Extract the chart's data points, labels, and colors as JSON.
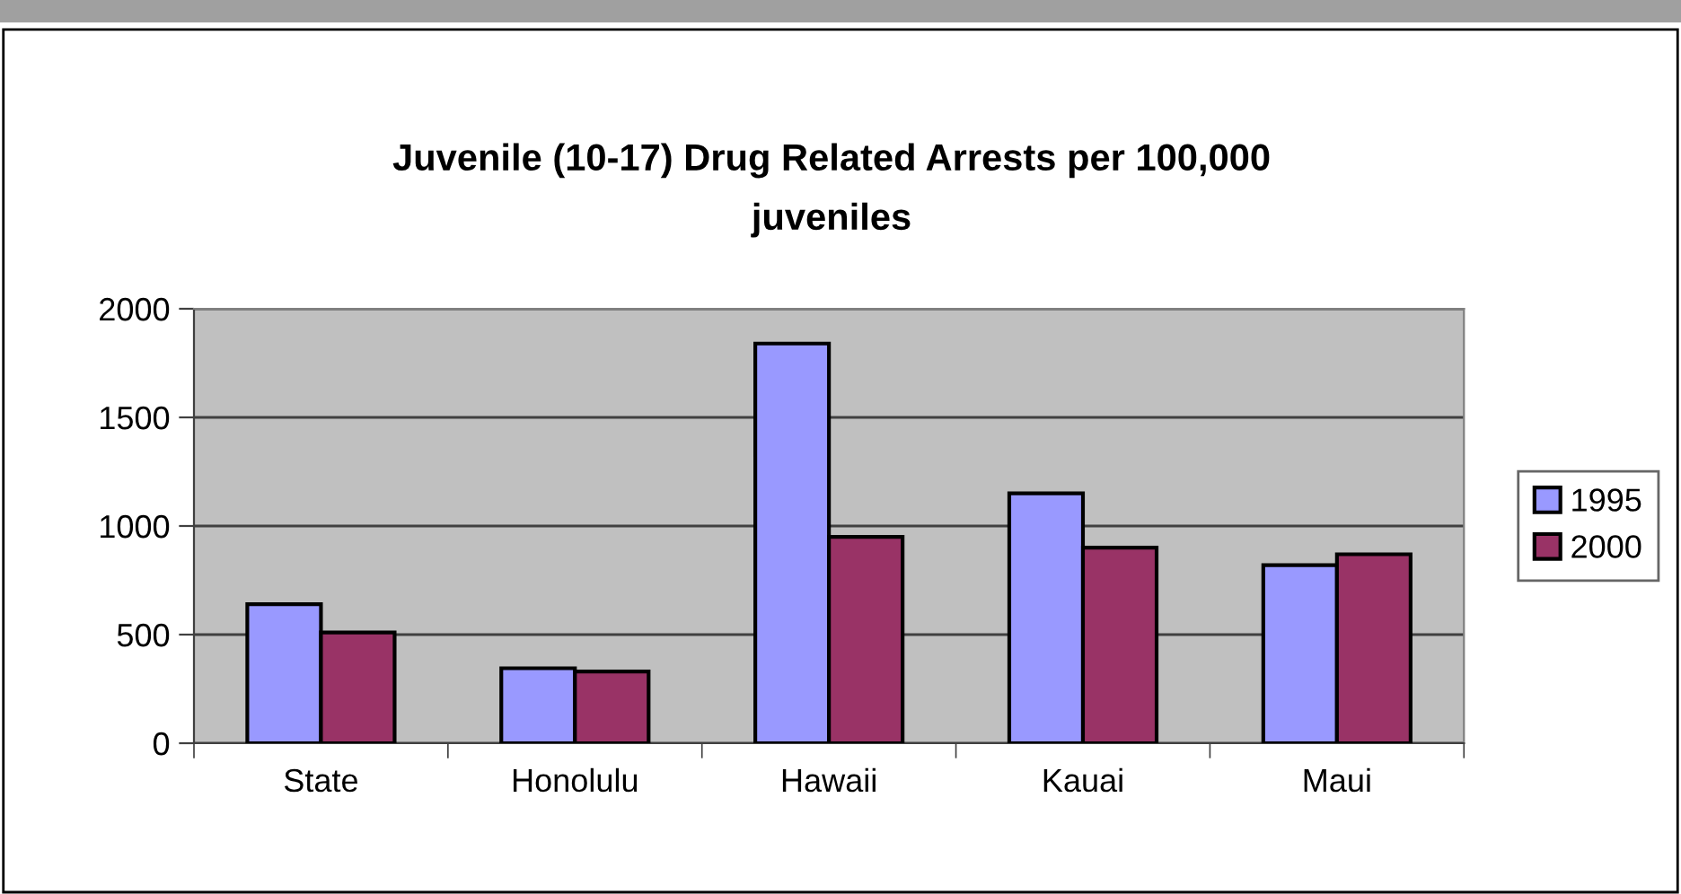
{
  "chart_data": {
    "type": "bar",
    "title": "Juvenile (10-17) Drug Related Arrests per 100,000\njuveniles",
    "categories": [
      "State",
      "Honolulu",
      "Hawaii",
      "Kauai",
      "Maui"
    ],
    "series": [
      {
        "name": "1995",
        "color": "#9999ff",
        "values": [
          640,
          345,
          1840,
          1150,
          820
        ]
      },
      {
        "name": "2000",
        "color": "#993366",
        "values": [
          510,
          330,
          950,
          900,
          870
        ]
      }
    ],
    "ylim": [
      0,
      2000
    ],
    "yticks": [
      0,
      500,
      1000,
      1500,
      2000
    ],
    "grid": "y",
    "legend": "right"
  }
}
